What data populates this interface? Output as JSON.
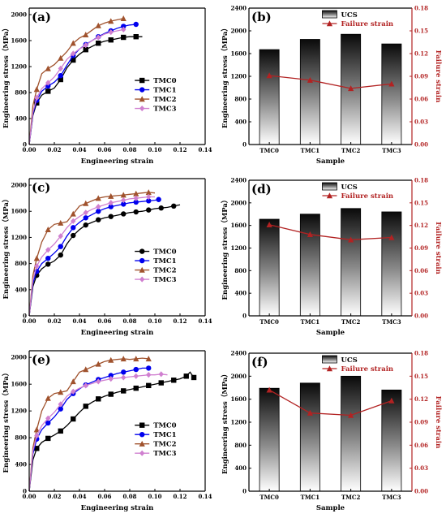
{
  "chart_data": [
    {
      "panel": "(a)",
      "type": "line",
      "xlabel": "Engineering strain",
      "ylabel": "Engineering stress（MPa）",
      "xlim": [
        0,
        0.14
      ],
      "ylim": [
        0,
        2100
      ],
      "xticks": [
        "0.00",
        "0.02",
        "0.04",
        "0.06",
        "0.08",
        "0.10",
        "0.12",
        "0.14"
      ],
      "yticks": [
        "0",
        "400",
        "800",
        "1200",
        "1600",
        "2000"
      ],
      "legend_position": "lower-right",
      "series": [
        {
          "name": "TMC0",
          "color": "#000000",
          "marker": "square",
          "x": [
            0,
            0.003,
            0.006,
            0.01,
            0.015,
            0.02,
            0.025,
            0.03,
            0.035,
            0.04,
            0.045,
            0.05,
            0.055,
            0.06,
            0.065,
            0.07,
            0.075,
            0.08,
            0.085,
            0.09
          ],
          "y": [
            0,
            450,
            640,
            760,
            820,
            870,
            1000,
            1180,
            1300,
            1390,
            1460,
            1510,
            1560,
            1590,
            1610,
            1630,
            1650,
            1660,
            1660,
            1660
          ]
        },
        {
          "name": "TMC1",
          "color": "#0000ee",
          "marker": "circle",
          "x": [
            0,
            0.003,
            0.006,
            0.01,
            0.015,
            0.02,
            0.025,
            0.03,
            0.035,
            0.04,
            0.045,
            0.05,
            0.055,
            0.06,
            0.065,
            0.07,
            0.075,
            0.08,
            0.085
          ],
          "y": [
            0,
            470,
            680,
            820,
            900,
            960,
            1060,
            1220,
            1370,
            1470,
            1540,
            1600,
            1660,
            1710,
            1750,
            1790,
            1820,
            1840,
            1850
          ]
        },
        {
          "name": "TMC2",
          "color": "#a0522d",
          "marker": "triangle",
          "x": [
            0,
            0.003,
            0.006,
            0.01,
            0.015,
            0.02,
            0.025,
            0.03,
            0.035,
            0.04,
            0.045,
            0.05,
            0.055,
            0.06,
            0.065,
            0.07,
            0.075
          ],
          "y": [
            0,
            600,
            850,
            1090,
            1170,
            1230,
            1330,
            1430,
            1560,
            1640,
            1690,
            1760,
            1830,
            1870,
            1900,
            1920,
            1940
          ]
        },
        {
          "name": "TMC3",
          "color": "#d080d0",
          "marker": "diamond",
          "x": [
            0,
            0.003,
            0.006,
            0.01,
            0.015,
            0.02,
            0.025,
            0.03,
            0.035,
            0.04,
            0.045,
            0.05,
            0.055,
            0.06,
            0.065,
            0.07,
            0.075
          ],
          "y": [
            0,
            500,
            720,
            860,
            950,
            1040,
            1170,
            1310,
            1400,
            1470,
            1530,
            1600,
            1650,
            1700,
            1730,
            1750,
            1770
          ]
        }
      ]
    },
    {
      "panel": "(b)",
      "type": "bar",
      "xlabel": "Sample",
      "ylabel": "Engineering stress（MPa）",
      "y2label": "Failure strain",
      "categories": [
        "TMC0",
        "TMC1",
        "TMC2",
        "TMC3"
      ],
      "ylim": [
        0,
        2400
      ],
      "y2lim": [
        0,
        0.18
      ],
      "yticks": [
        "0",
        "400",
        "800",
        "1200",
        "1600",
        "2000",
        "2400"
      ],
      "y2ticks": [
        "0.00",
        "0.03",
        "0.06",
        "0.09",
        "0.12",
        "0.15",
        "0.18"
      ],
      "legend_position": "top-right",
      "series": [
        {
          "name": "UCS",
          "type": "bar",
          "values": [
            1670,
            1850,
            1940,
            1770
          ]
        },
        {
          "name": "Failure strain",
          "type": "line",
          "axis": "right",
          "color": "#b22222",
          "values": [
            0.091,
            0.085,
            0.074,
            0.08
          ]
        }
      ]
    },
    {
      "panel": "(c)",
      "type": "line",
      "xlabel": "Engineering strain",
      "ylabel": "Engineering stress（MPa）",
      "xlim": [
        0,
        0.14
      ],
      "ylim": [
        0,
        2100
      ],
      "xticks": [
        "0.00",
        "0.02",
        "0.04",
        "0.06",
        "0.08",
        "0.10",
        "0.12",
        "0.14"
      ],
      "yticks": [
        "0",
        "400",
        "800",
        "1200",
        "1600",
        "2000"
      ],
      "legend_position": "lower-right",
      "series": [
        {
          "name": "TMC0",
          "color": "#000000",
          "marker": "circle",
          "x": [
            0,
            0.003,
            0.006,
            0.01,
            0.015,
            0.02,
            0.025,
            0.03,
            0.035,
            0.04,
            0.045,
            0.05,
            0.055,
            0.06,
            0.065,
            0.07,
            0.075,
            0.08,
            0.085,
            0.09,
            0.095,
            0.1,
            0.105,
            0.11,
            0.115,
            0.12
          ],
          "y": [
            0,
            450,
            620,
            720,
            790,
            840,
            930,
            1100,
            1230,
            1320,
            1390,
            1430,
            1470,
            1500,
            1520,
            1540,
            1560,
            1580,
            1590,
            1600,
            1620,
            1640,
            1650,
            1660,
            1680,
            1700
          ]
        },
        {
          "name": "TMC1",
          "color": "#0000ee",
          "marker": "circle",
          "x": [
            0,
            0.003,
            0.006,
            0.01,
            0.015,
            0.02,
            0.025,
            0.03,
            0.035,
            0.04,
            0.045,
            0.05,
            0.055,
            0.06,
            0.065,
            0.07,
            0.075,
            0.08,
            0.085,
            0.09,
            0.095,
            0.1,
            0.103
          ],
          "y": [
            0,
            500,
            680,
            800,
            880,
            960,
            1060,
            1220,
            1350,
            1430,
            1500,
            1550,
            1600,
            1640,
            1670,
            1690,
            1710,
            1730,
            1740,
            1750,
            1760,
            1770,
            1780
          ]
        },
        {
          "name": "TMC2",
          "color": "#a0522d",
          "marker": "triangle",
          "x": [
            0,
            0.003,
            0.006,
            0.01,
            0.015,
            0.02,
            0.025,
            0.03,
            0.035,
            0.04,
            0.045,
            0.05,
            0.055,
            0.06,
            0.065,
            0.07,
            0.075,
            0.08,
            0.085,
            0.09,
            0.095,
            0.1
          ],
          "y": [
            0,
            620,
            880,
            1130,
            1320,
            1400,
            1420,
            1440,
            1560,
            1680,
            1720,
            1760,
            1800,
            1820,
            1830,
            1840,
            1850,
            1860,
            1870,
            1880,
            1890,
            1880
          ]
        },
        {
          "name": "TMC3",
          "color": "#d080d0",
          "marker": "diamond",
          "x": [
            0,
            0.003,
            0.006,
            0.01,
            0.015,
            0.02,
            0.025,
            0.03,
            0.035,
            0.04,
            0.045,
            0.05,
            0.055,
            0.06,
            0.065,
            0.07,
            0.075,
            0.08,
            0.085,
            0.09,
            0.095,
            0.1
          ],
          "y": [
            0,
            550,
            760,
            900,
            1010,
            1100,
            1220,
            1350,
            1450,
            1520,
            1580,
            1630,
            1670,
            1700,
            1730,
            1750,
            1770,
            1790,
            1800,
            1810,
            1820,
            1820
          ]
        }
      ]
    },
    {
      "panel": "(d)",
      "type": "bar",
      "xlabel": "Sample",
      "ylabel": "Engineering stress（MPa）",
      "y2label": "Failure strain",
      "categories": [
        "TMC0",
        "TMC1",
        "TMC2",
        "TMC3"
      ],
      "ylim": [
        0,
        2400
      ],
      "y2lim": [
        0,
        0.18
      ],
      "yticks": [
        "0",
        "400",
        "800",
        "1200",
        "1600",
        "2000",
        "2400"
      ],
      "y2ticks": [
        "0.00",
        "0.03",
        "0.06",
        "0.09",
        "0.12",
        "0.15",
        "0.18"
      ],
      "legend_position": "top-right",
      "series": [
        {
          "name": "UCS",
          "type": "bar",
          "values": [
            1710,
            1800,
            1900,
            1840
          ]
        },
        {
          "name": "Failure strain",
          "type": "line",
          "axis": "right",
          "color": "#b22222",
          "values": [
            0.121,
            0.108,
            0.101,
            0.104
          ]
        }
      ]
    },
    {
      "panel": "(e)",
      "type": "line",
      "xlabel": "Engineering strain",
      "ylabel": "Engineering stress（MPa）",
      "xlim": [
        0,
        0.14
      ],
      "ylim": [
        0,
        2100
      ],
      "xticks": [
        "0.00",
        "0.02",
        "0.04",
        "0.06",
        "0.08",
        "0.10",
        "0.12",
        "0.14"
      ],
      "yticks": [
        "0",
        "400",
        "800",
        "1200",
        "1600",
        "2000"
      ],
      "legend_position": "lower-right",
      "series": [
        {
          "name": "TMC0",
          "color": "#000000",
          "marker": "square",
          "x": [
            0,
            0.003,
            0.006,
            0.01,
            0.015,
            0.02,
            0.025,
            0.03,
            0.035,
            0.04,
            0.045,
            0.05,
            0.055,
            0.06,
            0.065,
            0.07,
            0.075,
            0.08,
            0.085,
            0.09,
            0.095,
            0.1,
            0.105,
            0.11,
            0.115,
            0.12,
            0.125,
            0.128,
            0.131
          ],
          "y": [
            0,
            470,
            640,
            730,
            790,
            840,
            900,
            980,
            1080,
            1180,
            1270,
            1330,
            1380,
            1420,
            1450,
            1480,
            1500,
            1520,
            1540,
            1560,
            1580,
            1600,
            1620,
            1640,
            1660,
            1680,
            1720,
            1780,
            1700
          ]
        },
        {
          "name": "TMC1",
          "color": "#0000ee",
          "marker": "circle",
          "x": [
            0,
            0.003,
            0.006,
            0.01,
            0.015,
            0.02,
            0.025,
            0.03,
            0.035,
            0.04,
            0.045,
            0.05,
            0.055,
            0.06,
            0.065,
            0.07,
            0.075,
            0.08,
            0.085,
            0.09,
            0.095
          ],
          "y": [
            0,
            560,
            780,
            920,
            1020,
            1110,
            1230,
            1370,
            1460,
            1530,
            1590,
            1630,
            1670,
            1700,
            1730,
            1760,
            1780,
            1800,
            1820,
            1840,
            1840
          ]
        },
        {
          "name": "TMC2",
          "color": "#a0522d",
          "marker": "triangle",
          "x": [
            0,
            0.003,
            0.006,
            0.01,
            0.015,
            0.02,
            0.025,
            0.03,
            0.035,
            0.04,
            0.045,
            0.05,
            0.055,
            0.06,
            0.065,
            0.07,
            0.075,
            0.08,
            0.085,
            0.09,
            0.095
          ],
          "y": [
            0,
            650,
            920,
            1200,
            1390,
            1460,
            1480,
            1500,
            1640,
            1780,
            1820,
            1860,
            1900,
            1940,
            1960,
            1970,
            1980,
            1970,
            1980,
            1990,
            1980
          ]
        },
        {
          "name": "TMC3",
          "color": "#d080d0",
          "marker": "diamond",
          "x": [
            0,
            0.003,
            0.006,
            0.01,
            0.015,
            0.02,
            0.025,
            0.03,
            0.035,
            0.04,
            0.045,
            0.05,
            0.055,
            0.06,
            0.065,
            0.07,
            0.075,
            0.08,
            0.085,
            0.09,
            0.095,
            0.1,
            0.105,
            0.11
          ],
          "y": [
            0,
            600,
            830,
            980,
            1090,
            1180,
            1300,
            1420,
            1490,
            1540,
            1580,
            1610,
            1640,
            1660,
            1680,
            1690,
            1700,
            1710,
            1720,
            1730,
            1740,
            1740,
            1750,
            1740
          ]
        }
      ]
    },
    {
      "panel": "(f)",
      "type": "bar",
      "xlabel": "Sample",
      "ylabel": "Engineering stress（MPa）",
      "y2label": "Failure strain",
      "categories": [
        "TMC0",
        "TMC1",
        "TMC2",
        "TMC3"
      ],
      "ylim": [
        0,
        2400
      ],
      "y2lim": [
        0,
        0.18
      ],
      "yticks": [
        "0",
        "400",
        "800",
        "1200",
        "1600",
        "2000",
        "2400"
      ],
      "y2ticks": [
        "0.00",
        "0.03",
        "0.06",
        "0.09",
        "0.12",
        "0.15",
        "0.18"
      ],
      "legend_position": "top-right",
      "series": [
        {
          "name": "UCS",
          "type": "bar",
          "values": [
            1790,
            1880,
            2000,
            1760
          ]
        },
        {
          "name": "Failure strain",
          "type": "line",
          "axis": "right",
          "color": "#b22222",
          "values": [
            0.132,
            0.102,
            0.099,
            0.118
          ]
        }
      ]
    }
  ]
}
